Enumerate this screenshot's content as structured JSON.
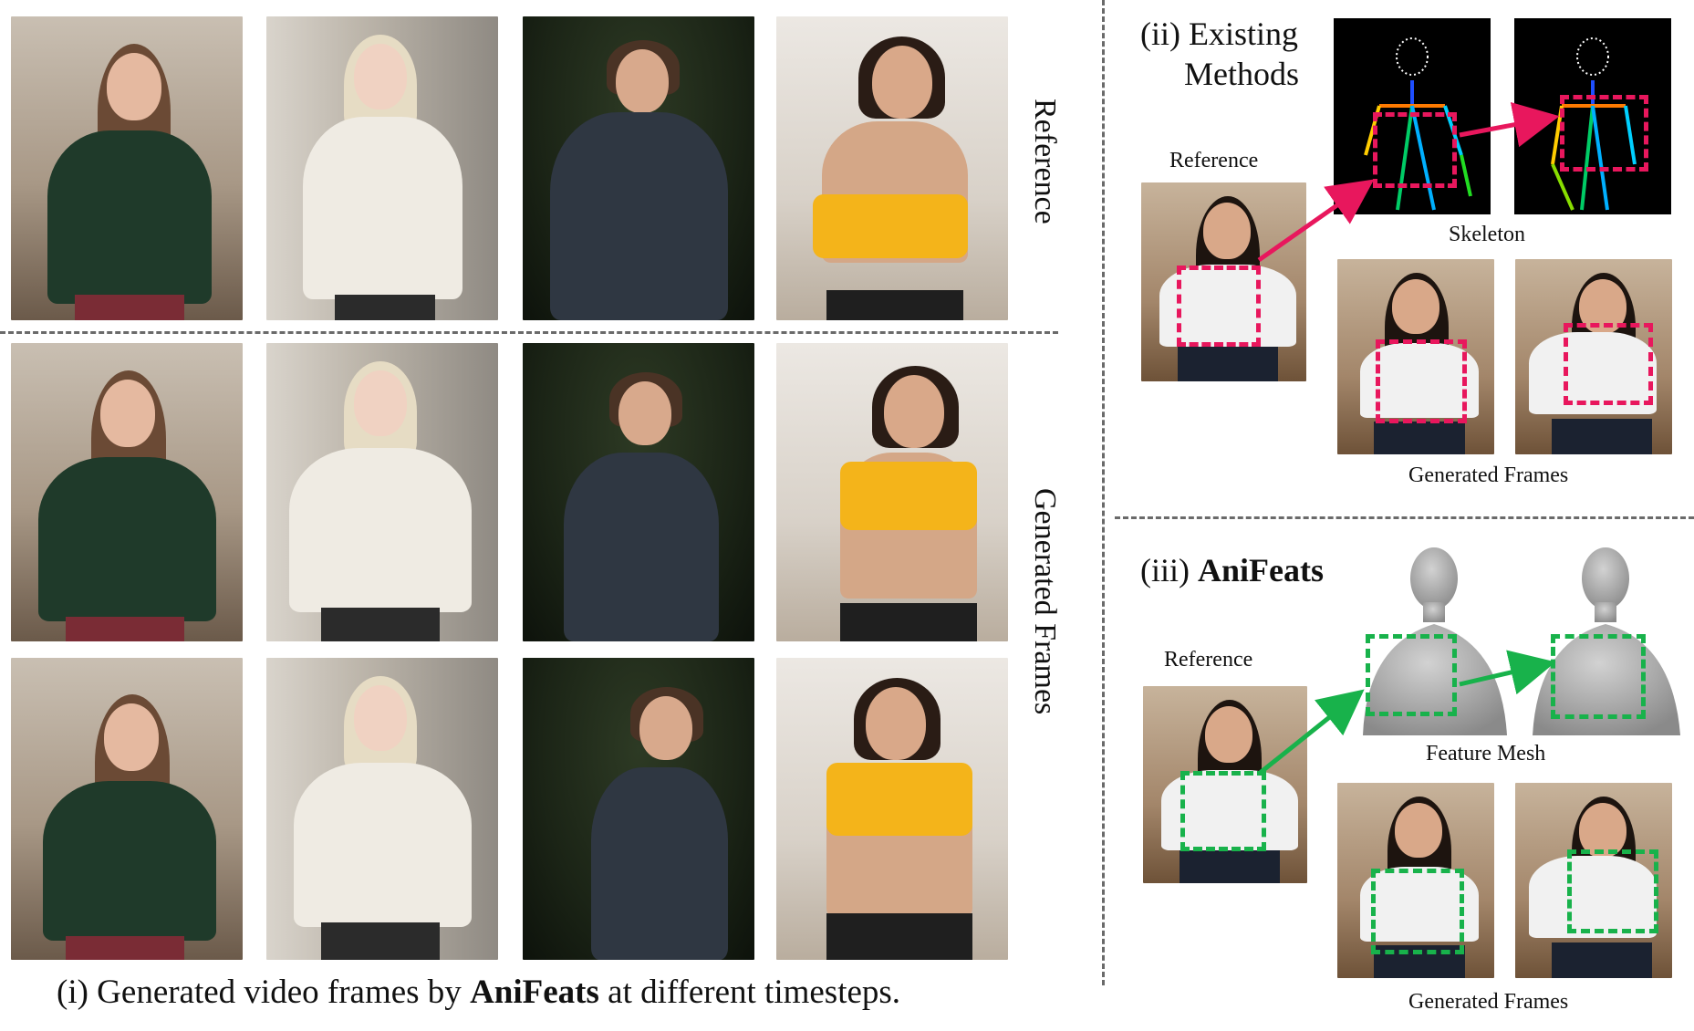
{
  "left_panel": {
    "row_labels": {
      "reference": "Reference",
      "generated": "Generated Frames"
    },
    "caption": {
      "prefix": "(i) Generated video frames by ",
      "bold": "AniFeats",
      "suffix": " at different timesteps."
    }
  },
  "existing_methods": {
    "title_line1": "(ii) Existing",
    "title_line2": "Methods",
    "reference_label": "Reference",
    "skeleton_label": "Skeleton",
    "generated_label": "Generated Frames",
    "accent_color": "#e8175d"
  },
  "anifeats": {
    "title_prefix": "(iii) ",
    "title_bold": "AniFeats",
    "reference_label": "Reference",
    "mesh_label": "Feature Mesh",
    "generated_label": "Generated Frames",
    "accent_color": "#18b24b"
  }
}
